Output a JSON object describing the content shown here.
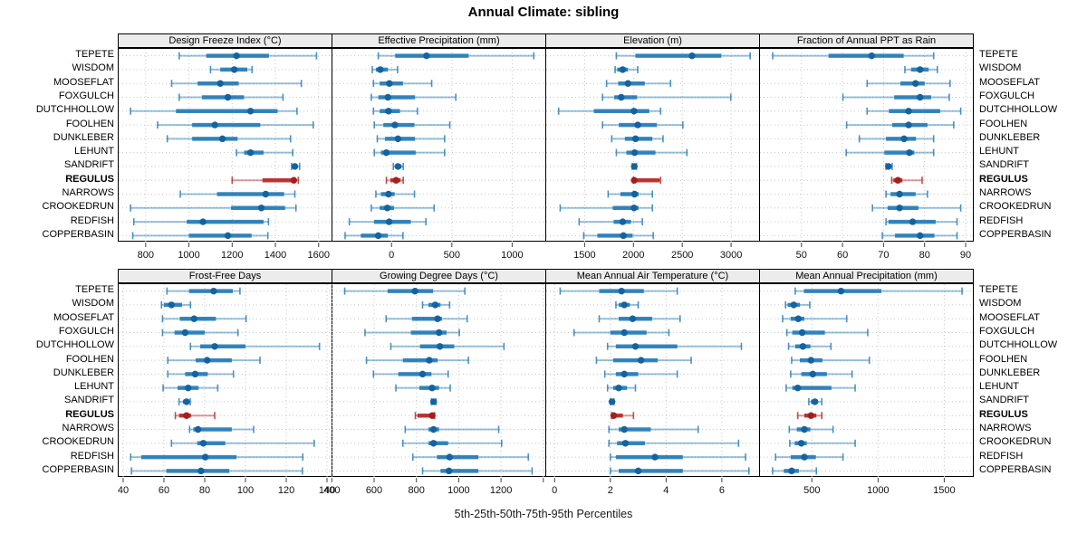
{
  "title": "Annual Climate: sibling",
  "caption": "5th-25th-50th-75th-95th Percentiles",
  "highlight_site": "REGULUS",
  "colors": {
    "blue": "#1f77b4",
    "blue_dot": "#15639e",
    "red": "#b22222",
    "red_dot": "#a41e1e",
    "strip_bg": "#ececec",
    "grid": "#c6c6c6",
    "border": "#000000",
    "tick": "#404040"
  },
  "chart_data": {
    "type": "dot-interval-trellis",
    "percentiles": [
      5,
      25,
      50,
      75,
      95
    ],
    "legend_note": "each row: thin line 5th-95th, thick line 25th-75th, dot median",
    "sites": [
      "TEPETE",
      "WISDOM",
      "MOOSEFLAT",
      "FOXGULCH",
      "DUTCHHOLLOW",
      "FOOLHEN",
      "DUNKLEBER",
      "LEHUNT",
      "SANDRIFT",
      "REGULUS",
      "NARROWS",
      "CROOKEDRUN",
      "REDFISH",
      "COPPERBASIN"
    ],
    "panels": [
      {
        "title": "Design Freeze Index (°C)",
        "xlim": [
          675,
          1668
        ],
        "ticks": [
          800,
          1000,
          1200,
          1400,
          1600
        ],
        "tick_labels": [
          "800",
          "1000",
          "1200",
          "1400",
          "1600"
        ],
        "values": [
          [
            955,
            1080,
            1220,
            1370,
            1590
          ],
          [
            1100,
            1145,
            1210,
            1270,
            1292
          ],
          [
            920,
            1040,
            1145,
            1230,
            1520
          ],
          [
            955,
            1060,
            1180,
            1255,
            1435
          ],
          [
            730,
            940,
            1285,
            1410,
            1500
          ],
          [
            855,
            1015,
            1120,
            1330,
            1575
          ],
          [
            900,
            1015,
            1155,
            1225,
            1470
          ],
          [
            1220,
            1255,
            1285,
            1345,
            1480
          ],
          [
            1475,
            1482,
            1490,
            1502,
            1512
          ],
          [
            1200,
            1340,
            1485,
            1496,
            1506
          ],
          [
            960,
            1130,
            1355,
            1440,
            1490
          ],
          [
            730,
            1195,
            1335,
            1445,
            1495
          ],
          [
            745,
            990,
            1065,
            1345,
            1368
          ],
          [
            740,
            1000,
            1180,
            1290,
            1365
          ]
        ]
      },
      {
        "title": "Effective Precipitation (mm)",
        "xlim": [
          -490,
          1290
        ],
        "ticks": [
          0,
          500,
          1000
        ],
        "tick_labels": [
          "0",
          "500",
          "1000"
        ],
        "values": [
          [
            -110,
            30,
            290,
            640,
            1180
          ],
          [
            -160,
            -130,
            -93,
            -30,
            50
          ],
          [
            -150,
            -98,
            -18,
            95,
            333
          ],
          [
            -168,
            -110,
            -30,
            195,
            533
          ],
          [
            -150,
            -98,
            -25,
            70,
            215
          ],
          [
            -143,
            -68,
            28,
            190,
            483
          ],
          [
            -118,
            -55,
            53,
            195,
            440
          ],
          [
            -143,
            -88,
            -43,
            200,
            440
          ],
          [
            15,
            33,
            53,
            83,
            97
          ],
          [
            -43,
            -10,
            38,
            75,
            97
          ],
          [
            -130,
            -88,
            -25,
            25,
            190
          ],
          [
            -168,
            -98,
            -35,
            20,
            353
          ],
          [
            -350,
            -145,
            -20,
            160,
            285
          ],
          [
            -385,
            -255,
            -110,
            -30,
            95
          ]
        ]
      },
      {
        "title": "Elevation (m)",
        "xlim": [
          1107,
          3305
        ],
        "ticks": [
          1500,
          2000,
          2500,
          3000
        ],
        "tick_labels": [
          "1500",
          "2000",
          "2500",
          "3000"
        ],
        "values": [
          [
            1825,
            2020,
            2600,
            2900,
            3195
          ],
          [
            1812,
            1834,
            1890,
            1944,
            2044
          ],
          [
            1725,
            1844,
            1944,
            2116,
            2380
          ],
          [
            1684,
            1803,
            1875,
            2037,
            2997
          ],
          [
            1234,
            1594,
            2006,
            2162,
            2278
          ],
          [
            1684,
            1850,
            2044,
            2240,
            2506
          ],
          [
            1778,
            1912,
            2022,
            2194,
            2303
          ],
          [
            1825,
            1928,
            2012,
            2225,
            2547
          ],
          [
            1988,
            1996,
            2009,
            2020,
            2031
          ],
          [
            2000,
            2003,
            2008,
            2268,
            2278
          ],
          [
            1741,
            1866,
            2012,
            2053,
            2194
          ],
          [
            1250,
            1788,
            2006,
            2053,
            2194
          ],
          [
            1444,
            1797,
            1890,
            1975,
            2091
          ],
          [
            1491,
            1631,
            1897,
            1991,
            2203
          ]
        ]
      },
      {
        "title": "Fraction of Annual PPT as Rain",
        "xlim": [
          39.9,
          92.2
        ],
        "ticks": [
          50,
          60,
          70,
          80,
          90
        ],
        "tick_labels": [
          "50",
          "60",
          "70",
          "80",
          "90"
        ],
        "values": [
          [
            43.0,
            56.6,
            67.1,
            74.9,
            82.2
          ],
          [
            75.2,
            76.7,
            78.9,
            81.0,
            83.1
          ],
          [
            66.0,
            74.1,
            77.8,
            80.0,
            86.2
          ],
          [
            60.1,
            72.6,
            78.9,
            81.6,
            86.0
          ],
          [
            66.0,
            71.3,
            76.1,
            83.8,
            88.8
          ],
          [
            61.0,
            72.1,
            76.1,
            80.7,
            87.1
          ],
          [
            64.1,
            70.6,
            75.0,
            77.9,
            82.2
          ],
          [
            60.9,
            70.2,
            76.3,
            77.5,
            82.2
          ],
          [
            70.6,
            70.9,
            71.2,
            71.7,
            72.1
          ],
          [
            72.0,
            72.4,
            73.5,
            74.6,
            79.4
          ],
          [
            70.6,
            71.7,
            73.9,
            77.8,
            80.7
          ],
          [
            67.3,
            71.0,
            73.9,
            78.5,
            88.8
          ],
          [
            70.6,
            71.2,
            77.1,
            82.7,
            87.9
          ],
          [
            69.7,
            72.8,
            78.9,
            82.4,
            87.9
          ]
        ]
      },
      {
        "title": "Frost-Free Days",
        "xlim": [
          37.8,
          143.1
        ],
        "ticks": [
          40,
          60,
          80,
          100,
          120,
          140
        ],
        "tick_labels": [
          "40",
          "60",
          "80",
          "100",
          "120",
          "140"
        ],
        "values": [
          [
            61.5,
            72.3,
            84.4,
            93.8,
            97.3
          ],
          [
            58.8,
            60.0,
            63.7,
            68.9,
            73.0
          ],
          [
            59.3,
            67.8,
            74.8,
            85.5,
            100.3
          ],
          [
            59.3,
            65.2,
            70.4,
            80.0,
            96.3
          ],
          [
            73.0,
            77.8,
            84.9,
            100.0,
            136.3
          ],
          [
            61.9,
            75.6,
            81.2,
            93.3,
            107.1
          ],
          [
            61.9,
            70.4,
            75.3,
            81.5,
            94.1
          ],
          [
            59.6,
            66.7,
            71.9,
            77.0,
            86.4
          ],
          [
            67.4,
            69.3,
            71.1,
            72.3,
            72.9
          ],
          [
            65.6,
            67.4,
            71.1,
            73.3,
            84.9
          ],
          [
            72.6,
            74.4,
            76.7,
            93.3,
            104.0
          ],
          [
            63.7,
            76.3,
            79.3,
            90.1,
            133.7
          ],
          [
            43.7,
            48.9,
            80.3,
            95.6,
            128.1
          ],
          [
            44.1,
            61.2,
            78.2,
            92.1,
            127.9
          ]
        ]
      },
      {
        "title": "Growing Degree Days (°C)",
        "xlim": [
          403,
          1418
        ],
        "ticks": [
          400,
          600,
          800,
          1000,
          1200,
          1400
        ],
        "tick_labels": [
          "400",
          "600",
          "800",
          "1000",
          "1200",
          ""
        ],
        "values": [
          [
            461,
            664,
            793,
            879,
            1029
          ],
          [
            829,
            857,
            889,
            914,
            957
          ],
          [
            657,
            779,
            900,
            921,
            1040
          ],
          [
            557,
            774,
            907,
            943,
            1003
          ],
          [
            679,
            817,
            911,
            979,
            1214
          ],
          [
            564,
            736,
            861,
            900,
            1046
          ],
          [
            597,
            714,
            829,
            871,
            950
          ],
          [
            703,
            814,
            874,
            907,
            960
          ],
          [
            871,
            876,
            881,
            890,
            893
          ],
          [
            795,
            805,
            875,
            880,
            886
          ],
          [
            747,
            857,
            881,
            907,
            1189
          ],
          [
            736,
            857,
            881,
            950,
            1203
          ],
          [
            783,
            897,
            957,
            1093,
            1329
          ],
          [
            829,
            914,
            954,
            1093,
            1347
          ]
        ]
      },
      {
        "title": "Mean Annual Air Temperature (°C)",
        "xlim": [
          -0.3,
          7.4
        ],
        "ticks": [
          0,
          2,
          4,
          6
        ],
        "tick_labels": [
          "0",
          "2",
          "4",
          "6"
        ],
        "values": [
          [
            0.2,
            1.6,
            2.4,
            3.2,
            4.4
          ],
          [
            2.2,
            2.3,
            2.5,
            2.7,
            3.0
          ],
          [
            1.6,
            2.3,
            2.8,
            3.5,
            4.5
          ],
          [
            0.7,
            2.0,
            2.5,
            3.3,
            4.1
          ],
          [
            1.9,
            2.2,
            2.9,
            4.4,
            6.7
          ],
          [
            1.5,
            2.1,
            3.1,
            3.7,
            4.9
          ],
          [
            1.8,
            2.2,
            2.5,
            3.0,
            4.4
          ],
          [
            1.9,
            2.1,
            2.3,
            2.6,
            2.9
          ],
          [
            2.0,
            2.03,
            2.06,
            2.1,
            2.13
          ],
          [
            2.05,
            2.08,
            2.12,
            2.45,
            2.83
          ],
          [
            1.95,
            2.3,
            2.5,
            3.45,
            5.15
          ],
          [
            1.95,
            2.24,
            2.54,
            3.24,
            6.6
          ],
          [
            2.0,
            2.2,
            3.6,
            4.6,
            6.85
          ],
          [
            2.0,
            2.3,
            3.0,
            4.6,
            6.97
          ]
        ]
      },
      {
        "title": "Mean Annual Precipitation (mm)",
        "xlim": [
          108,
          1730
        ],
        "ticks": [
          500,
          1000,
          1500
        ],
        "tick_labels": [
          "500",
          "1000",
          "1500"
        ],
        "values": [
          [
            374,
            440,
            720,
            1025,
            1635
          ],
          [
            301,
            317,
            363,
            409,
            484
          ],
          [
            279,
            340,
            397,
            443,
            763
          ],
          [
            311,
            352,
            427,
            598,
            922
          ],
          [
            324,
            374,
            432,
            489,
            644
          ],
          [
            347,
            409,
            493,
            580,
            934
          ],
          [
            340,
            420,
            507,
            614,
            804
          ],
          [
            306,
            352,
            393,
            648,
            827
          ],
          [
            477,
            493,
            523,
            546,
            575
          ],
          [
            393,
            443,
            493,
            534,
            575
          ],
          [
            329,
            386,
            443,
            489,
            660
          ],
          [
            333,
            370,
            420,
            461,
            827
          ],
          [
            226,
            340,
            443,
            530,
            735
          ],
          [
            203,
            288,
            347,
            402,
            534
          ]
        ]
      }
    ]
  }
}
